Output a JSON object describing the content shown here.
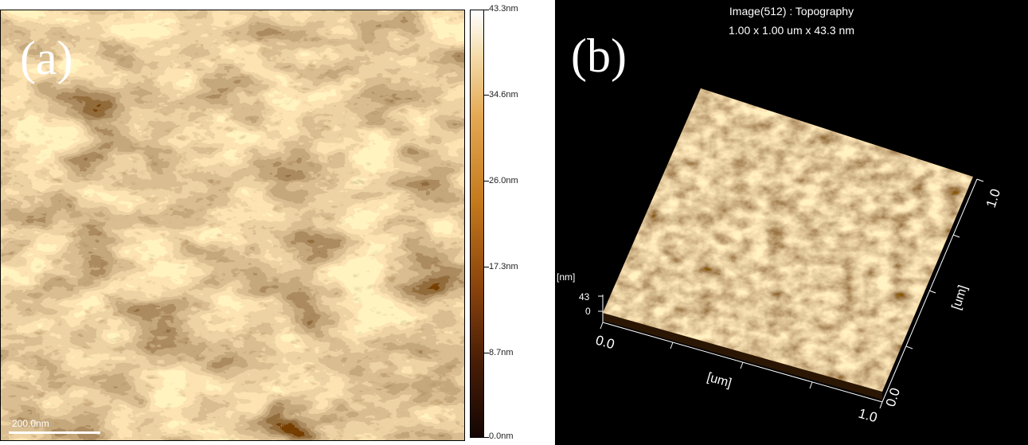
{
  "panel_a": {
    "letter": "(a)",
    "scale_bar_label": "200.0nm",
    "colorbar": {
      "labels": [
        "43.3nm",
        "34.6nm",
        "26.0nm",
        "17.3nm",
        "8.7nm",
        "0.0nm"
      ]
    }
  },
  "panel_b": {
    "letter": "(b)",
    "title_line1": "Image(512) : Topography",
    "title_line2": "1.00 x 1.00 um x 43.3 nm",
    "z_unit": "[nm]",
    "z_max": "43",
    "z_min": "0",
    "x_start": "0.0",
    "x_end": "1.0",
    "x_unit": "[um]",
    "y_start": "0.0",
    "y_end": "1.0",
    "y_unit": "[um]"
  },
  "colors": {
    "surface_dark": "#5a2a08",
    "surface_mid": "#c47a24",
    "surface_light": "#f6e0b0"
  }
}
